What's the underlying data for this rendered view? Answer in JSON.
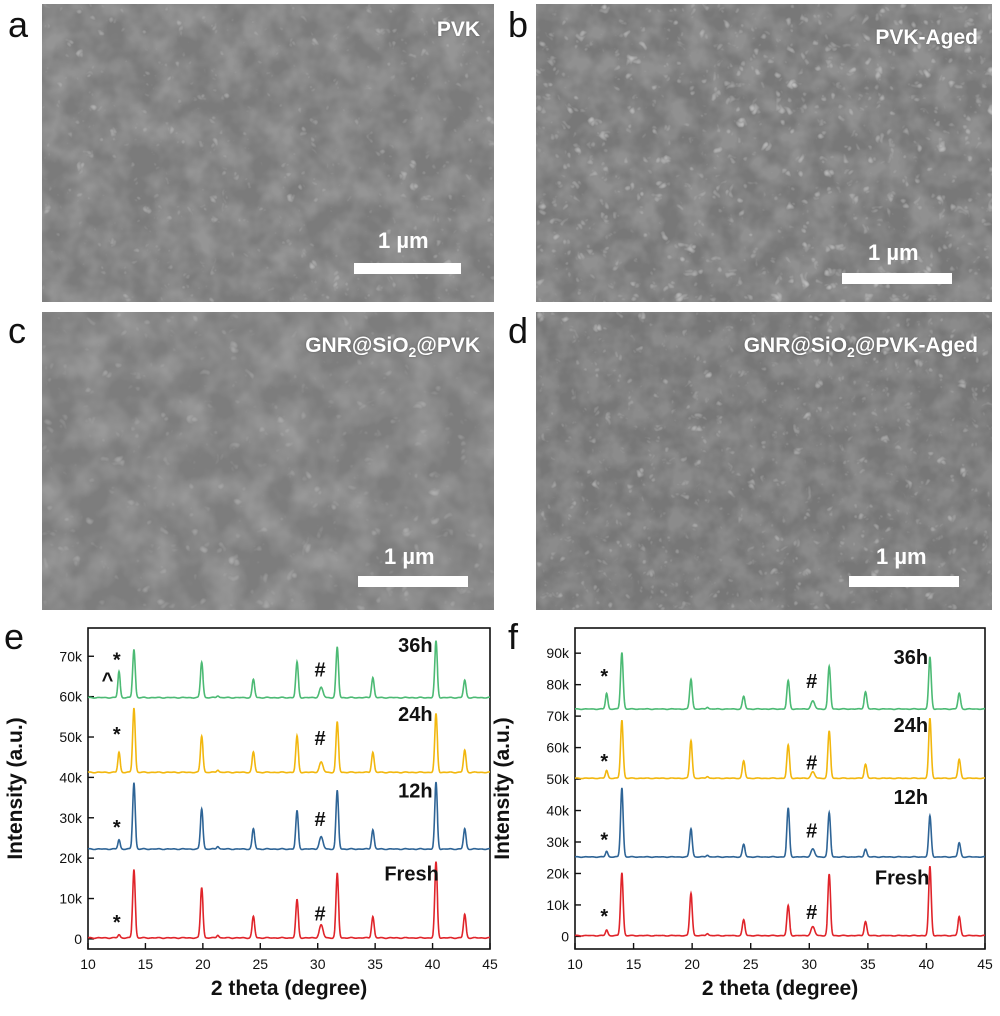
{
  "panels": {
    "a": {
      "letter": "a",
      "label": "PVK",
      "scale": "1 µm"
    },
    "b": {
      "letter": "b",
      "label": "PVK-Aged",
      "scale": "1 µm"
    },
    "c": {
      "letter": "c",
      "label_main": "GNR@SiO",
      "label_sub": "2",
      "label_tail": "@PVK",
      "scale": "1 µm"
    },
    "d": {
      "letter": "d",
      "label_main": "GNR@SiO",
      "label_sub": "2",
      "label_tail": "@PVK-Aged",
      "scale": "1 µm"
    },
    "e": {
      "letter": "e"
    },
    "f": {
      "letter": "f"
    }
  },
  "colors": {
    "fresh": "#e0242a",
    "12h": "#2e6496",
    "24h": "#f2b70e",
    "36h": "#4cba74"
  },
  "chart_data": [
    {
      "id": "e",
      "type": "line",
      "xlabel": "2 theta (degree)",
      "ylabel": "Intensity (a.u.)",
      "xlim": [
        10,
        45
      ],
      "ylim": [
        -2500,
        77000
      ],
      "xticks": [
        10,
        15,
        20,
        25,
        30,
        35,
        40,
        45
      ],
      "yticks": [
        0,
        10000,
        20000,
        30000,
        40000,
        50000,
        60000,
        70000
      ],
      "ytick_labels": [
        "0",
        "10k",
        "20k",
        "30k",
        "40k",
        "50k",
        "60k",
        "70k"
      ],
      "peaks_2theta": [
        12.7,
        14.0,
        19.9,
        21.3,
        24.4,
        28.2,
        30.3,
        31.7,
        34.8,
        40.3,
        42.8
      ],
      "series": [
        {
          "name": "Fresh",
          "color_key": "fresh",
          "baseline": 0,
          "peak_heights": [
            800,
            17000,
            12500,
            700,
            5300,
            9500,
            3200,
            16000,
            5300,
            18800,
            5800
          ],
          "annotations": [
            {
              "text": "*",
              "x": 12.5,
              "y": 2500
            },
            {
              "text": "#",
              "x": 30.2,
              "y": 4500
            }
          ],
          "label_pos": {
            "x": 35.8,
            "y": 14500
          }
        },
        {
          "name": "12h",
          "color_key": "12h",
          "baseline": 22000,
          "peak_heights": [
            2300,
            16500,
            10000,
            700,
            5000,
            9500,
            3000,
            14500,
            4800,
            16500,
            5000
          ],
          "annotations": [
            {
              "text": "*",
              "x": 12.5,
              "y": 26000
            },
            {
              "text": "#",
              "x": 30.2,
              "y": 28000
            }
          ],
          "label_pos": {
            "x": 37.0,
            "y": 35000
          }
        },
        {
          "name": "24h",
          "color_key": "24h",
          "baseline": 41000,
          "peak_heights": [
            5000,
            16000,
            9000,
            600,
            5000,
            9000,
            2500,
            12500,
            5000,
            14500,
            5500
          ],
          "annotations": [
            {
              "text": "*",
              "x": 12.5,
              "y": 49000
            },
            {
              "text": "#",
              "x": 30.2,
              "y": 48000
            }
          ],
          "label_pos": {
            "x": 37.0,
            "y": 54000
          }
        },
        {
          "name": "36h",
          "color_key": "36h",
          "baseline": 59500,
          "peak_heights": [
            6500,
            12000,
            8800,
            500,
            4500,
            8800,
            2500,
            12500,
            5000,
            14000,
            4300
          ],
          "annotations": [
            {
              "text": "^",
              "x": 11.7,
              "y": 62500
            },
            {
              "text": "*",
              "x": 12.5,
              "y": 67500
            },
            {
              "text": "#",
              "x": 30.2,
              "y": 65000
            }
          ],
          "label_pos": {
            "x": 37.0,
            "y": 71000
          }
        }
      ]
    },
    {
      "id": "f",
      "type": "line",
      "xlabel": "2 theta (degree)",
      "ylabel": "Intensity (a.u.)",
      "xlim": [
        10,
        45
      ],
      "ylim": [
        -4000,
        98000
      ],
      "xticks": [
        10,
        15,
        20,
        25,
        30,
        35,
        40,
        45
      ],
      "yticks": [
        0,
        10000,
        20000,
        30000,
        40000,
        50000,
        60000,
        70000,
        80000,
        90000
      ],
      "ytick_labels": [
        "0",
        "10k",
        "20k",
        "30k",
        "40k",
        "50k",
        "60k",
        "70k",
        "80k",
        "90k"
      ],
      "peaks_2theta": [
        12.7,
        14.0,
        19.9,
        21.3,
        24.4,
        28.2,
        30.3,
        31.7,
        34.8,
        40.3,
        42.8
      ],
      "series": [
        {
          "name": "Fresh",
          "color_key": "fresh",
          "baseline": 0,
          "peak_heights": [
            1800,
            20000,
            13500,
            700,
            5000,
            9500,
            2800,
            19500,
            4500,
            22000,
            6000
          ],
          "annotations": [
            {
              "text": "*",
              "x": 12.5,
              "y": 4200
            },
            {
              "text": "#",
              "x": 30.2,
              "y": 5500
            }
          ],
          "label_pos": {
            "x": 35.6,
            "y": 16500
          }
        },
        {
          "name": "12h",
          "color_key": "12h",
          "baseline": 25000,
          "peak_heights": [
            1800,
            22000,
            9000,
            600,
            4000,
            15500,
            2500,
            14000,
            2500,
            13000,
            4500
          ],
          "annotations": [
            {
              "text": "*",
              "x": 12.5,
              "y": 28500
            },
            {
              "text": "#",
              "x": 30.2,
              "y": 31500
            }
          ],
          "label_pos": {
            "x": 37.2,
            "y": 42000
          }
        },
        {
          "name": "24h",
          "color_key": "24h",
          "baseline": 50000,
          "peak_heights": [
            2500,
            18500,
            12000,
            600,
            5500,
            10500,
            2000,
            15000,
            4500,
            19000,
            6000
          ],
          "annotations": [
            {
              "text": "*",
              "x": 12.5,
              "y": 53500
            },
            {
              "text": "#",
              "x": 30.2,
              "y": 53000
            }
          ],
          "label_pos": {
            "x": 37.2,
            "y": 65000
          }
        },
        {
          "name": "36h",
          "color_key": "36h",
          "baseline": 72000,
          "peak_heights": [
            5000,
            18000,
            9500,
            600,
            4000,
            9000,
            2500,
            13500,
            5500,
            16500,
            5000
          ],
          "annotations": [
            {
              "text": "*",
              "x": 12.5,
              "y": 80500
            },
            {
              "text": "#",
              "x": 30.2,
              "y": 79000
            }
          ],
          "label_pos": {
            "x": 37.2,
            "y": 86500
          }
        }
      ]
    }
  ]
}
